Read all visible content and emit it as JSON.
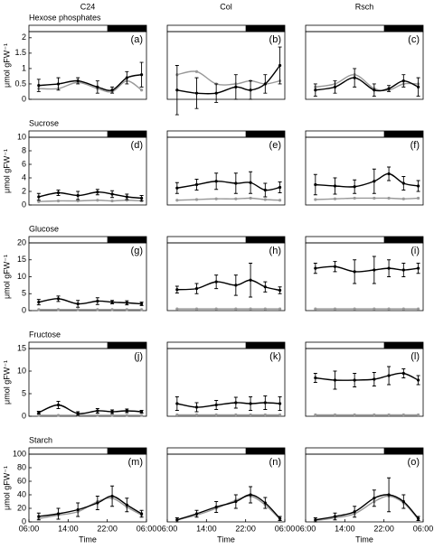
{
  "chart_data": [
    {
      "type": "line",
      "title": "C24",
      "row_title": "Hexose phosphates",
      "ylabel": "μmol gFW⁻¹",
      "panel_label": "(a)",
      "x": [
        2,
        6,
        10,
        14,
        17,
        20,
        23
      ],
      "xlim": [
        0,
        24
      ],
      "ylim": [
        0,
        2.2
      ],
      "yticks": [
        0,
        0.5,
        1,
        1.5,
        2
      ],
      "dark_period": [
        16,
        24
      ],
      "series": [
        {
          "color": "#000000",
          "values": [
            0.45,
            0.5,
            0.6,
            0.4,
            0.3,
            0.7,
            0.8
          ],
          "errors": [
            0.2,
            0.2,
            0.1,
            0.2,
            0.1,
            0.2,
            0.4
          ]
        },
        {
          "color": "#999999",
          "values": [
            0.35,
            0.35,
            0.55,
            0.35,
            0.25,
            0.6,
            0.3
          ]
        }
      ]
    },
    {
      "type": "line",
      "title": "Col",
      "panel_label": "(b)",
      "x": [
        2,
        6,
        10,
        14,
        17,
        20,
        23
      ],
      "xlim": [
        0,
        24
      ],
      "ylim": [
        0,
        2.2
      ],
      "dark_period": [
        16,
        24
      ],
      "series": [
        {
          "color": "#000000",
          "values": [
            0.3,
            0.2,
            0.2,
            0.4,
            0.3,
            0.5,
            1.1
          ],
          "errors": [
            0.8,
            0.5,
            0.3,
            0.4,
            0.3,
            0.3,
            0.6
          ]
        },
        {
          "color": "#999999",
          "values": [
            0.8,
            0.9,
            0.5,
            0.5,
            0.6,
            0.5,
            0.6
          ]
        }
      ]
    },
    {
      "type": "line",
      "title": "Rsch",
      "panel_label": "(c)",
      "x": [
        2,
        6,
        10,
        14,
        17,
        20,
        23
      ],
      "xlim": [
        0,
        24
      ],
      "ylim": [
        0,
        2.2
      ],
      "dark_period": [
        16,
        24
      ],
      "series": [
        {
          "color": "#000000",
          "values": [
            0.3,
            0.4,
            0.7,
            0.3,
            0.35,
            0.6,
            0.4
          ],
          "errors": [
            0.2,
            0.2,
            0.3,
            0.2,
            0.1,
            0.2,
            0.3
          ]
        },
        {
          "color": "#999999",
          "values": [
            0.4,
            0.5,
            0.8,
            0.35,
            0.3,
            0.5,
            0.5
          ]
        }
      ]
    },
    {
      "type": "line",
      "row_title": "Sucrose",
      "ylabel": "μmol gFW⁻¹",
      "panel_label": "(d)",
      "x": [
        2,
        6,
        10,
        14,
        17,
        20,
        23
      ],
      "xlim": [
        0,
        24
      ],
      "ylim": [
        0,
        10
      ],
      "yticks": [
        0,
        2,
        4,
        6,
        8,
        10
      ],
      "dark_period": [
        16,
        24
      ],
      "series": [
        {
          "color": "#000000",
          "values": [
            1.2,
            1.8,
            1.4,
            1.9,
            1.6,
            1.2,
            1.0
          ],
          "errors": [
            0.5,
            0.4,
            0.6,
            0.4,
            0.5,
            0.4,
            0.4
          ]
        },
        {
          "color": "#999999",
          "values": [
            0.5,
            0.6,
            0.6,
            0.7,
            0.6,
            0.7,
            0.6
          ]
        }
      ]
    },
    {
      "type": "line",
      "panel_label": "(e)",
      "x": [
        2,
        6,
        10,
        14,
        17,
        20,
        23
      ],
      "xlim": [
        0,
        24
      ],
      "ylim": [
        0,
        10
      ],
      "dark_period": [
        16,
        24
      ],
      "series": [
        {
          "color": "#000000",
          "values": [
            2.5,
            3.0,
            3.5,
            3.2,
            3.3,
            2.2,
            2.6
          ],
          "errors": [
            0.8,
            0.8,
            1.2,
            1.5,
            1.6,
            1.0,
            0.8
          ]
        },
        {
          "color": "#999999",
          "values": [
            0.7,
            0.8,
            0.9,
            0.9,
            1.0,
            0.8,
            0.7
          ]
        }
      ]
    },
    {
      "type": "line",
      "panel_label": "(f)",
      "x": [
        2,
        6,
        10,
        14,
        17,
        20,
        23
      ],
      "xlim": [
        0,
        24
      ],
      "ylim": [
        0,
        10
      ],
      "dark_period": [
        16,
        24
      ],
      "series": [
        {
          "color": "#000000",
          "values": [
            3.0,
            2.8,
            2.7,
            3.5,
            4.6,
            3.2,
            2.8
          ],
          "errors": [
            1.5,
            1.2,
            1.0,
            1.8,
            1.0,
            1.0,
            0.8
          ]
        },
        {
          "color": "#999999",
          "values": [
            0.8,
            0.9,
            1.0,
            1.0,
            1.0,
            0.9,
            1.0
          ]
        }
      ]
    },
    {
      "type": "line",
      "row_title": "Glucose",
      "ylabel": "μmol gFW⁻¹",
      "panel_label": "(g)",
      "x": [
        2,
        6,
        10,
        14,
        17,
        20,
        23
      ],
      "xlim": [
        0,
        24
      ],
      "ylim": [
        0,
        20
      ],
      "yticks": [
        0,
        5,
        10,
        15,
        20
      ],
      "dark_period": [
        16,
        24
      ],
      "series": [
        {
          "color": "#000000",
          "values": [
            2.5,
            3.5,
            2.0,
            2.8,
            2.5,
            2.3,
            2.0
          ],
          "errors": [
            0.8,
            0.8,
            1.0,
            1.0,
            0.5,
            0.6,
            0.5
          ]
        },
        {
          "color": "#999999",
          "values": [
            0.3,
            0.3,
            0.3,
            0.3,
            0.3,
            0.3,
            0.3
          ]
        }
      ]
    },
    {
      "type": "line",
      "panel_label": "(h)",
      "x": [
        2,
        6,
        10,
        14,
        17,
        20,
        23
      ],
      "xlim": [
        0,
        24
      ],
      "ylim": [
        0,
        20
      ],
      "dark_period": [
        16,
        24
      ],
      "series": [
        {
          "color": "#000000",
          "values": [
            6.2,
            6.5,
            8.5,
            7.5,
            9.0,
            7.0,
            6.0
          ],
          "errors": [
            1.0,
            1.5,
            2.0,
            3.0,
            5.0,
            1.5,
            1.0
          ]
        },
        {
          "color": "#999999",
          "values": [
            0.5,
            0.5,
            0.5,
            0.5,
            0.5,
            0.5,
            0.5
          ]
        }
      ]
    },
    {
      "type": "line",
      "panel_label": "(i)",
      "x": [
        2,
        6,
        10,
        14,
        17,
        20,
        23
      ],
      "xlim": [
        0,
        24
      ],
      "ylim": [
        0,
        20
      ],
      "dark_period": [
        16,
        24
      ],
      "series": [
        {
          "color": "#000000",
          "values": [
            12.5,
            13.0,
            11.5,
            12.0,
            12.5,
            12.0,
            12.5
          ],
          "errors": [
            1.5,
            1.5,
            3.5,
            4.0,
            2.5,
            2.0,
            1.5
          ]
        },
        {
          "color": "#999999",
          "values": [
            0.5,
            0.5,
            0.5,
            0.5,
            0.5,
            0.5,
            0.5
          ]
        }
      ]
    },
    {
      "type": "line",
      "row_title": "Fructose",
      "ylabel": "μmol gFW⁻¹",
      "panel_label": "(j)",
      "x": [
        2,
        6,
        10,
        14,
        17,
        20,
        23
      ],
      "xlim": [
        0,
        24
      ],
      "ylim": [
        0,
        15
      ],
      "yticks": [
        0,
        5,
        10,
        15
      ],
      "dark_period": [
        16,
        24
      ],
      "series": [
        {
          "color": "#000000",
          "values": [
            0.8,
            2.5,
            0.6,
            1.2,
            1.0,
            1.2,
            1.0
          ],
          "errors": [
            0.3,
            0.8,
            0.4,
            0.5,
            0.4,
            0.4,
            0.3
          ]
        },
        {
          "color": "#999999",
          "values": [
            0.2,
            0.2,
            0.2,
            0.2,
            0.2,
            0.2,
            0.2
          ]
        }
      ]
    },
    {
      "type": "line",
      "panel_label": "(k)",
      "x": [
        2,
        6,
        10,
        14,
        17,
        20,
        23
      ],
      "xlim": [
        0,
        24
      ],
      "ylim": [
        0,
        15
      ],
      "dark_period": [
        16,
        24
      ],
      "series": [
        {
          "color": "#000000",
          "values": [
            2.8,
            2.0,
            2.5,
            3.0,
            2.8,
            3.0,
            2.8
          ],
          "errors": [
            1.5,
            1.0,
            1.0,
            1.2,
            1.5,
            1.5,
            1.5
          ]
        },
        {
          "color": "#999999",
          "values": [
            0.3,
            0.3,
            0.3,
            0.3,
            0.3,
            0.3,
            0.3
          ]
        }
      ]
    },
    {
      "type": "line",
      "panel_label": "(l)",
      "x": [
        2,
        6,
        10,
        14,
        17,
        20,
        23
      ],
      "xlim": [
        0,
        24
      ],
      "ylim": [
        0,
        15
      ],
      "dark_period": [
        16,
        24
      ],
      "series": [
        {
          "color": "#000000",
          "values": [
            8.5,
            8.0,
            8.0,
            8.2,
            9.0,
            9.5,
            8.0
          ],
          "errors": [
            1.0,
            2.0,
            1.5,
            1.5,
            2.0,
            1.0,
            1.0
          ]
        },
        {
          "color": "#999999",
          "values": [
            0.3,
            0.3,
            0.3,
            0.3,
            0.3,
            0.3,
            0.3
          ]
        }
      ]
    },
    {
      "type": "line",
      "row_title": "Starch",
      "ylabel": "μmol gFW⁻¹",
      "xlabel": "Time",
      "panel_label": "(m)",
      "x": [
        2,
        6,
        10,
        14,
        17,
        20,
        23
      ],
      "xlim": [
        0,
        24
      ],
      "xticks": [
        {
          "value": 0,
          "label": "06:00"
        },
        {
          "value": 8,
          "label": "14:00"
        },
        {
          "value": 16,
          "label": "22:00"
        },
        {
          "value": 24,
          "label": "06:00"
        }
      ],
      "ylim": [
        0,
        100
      ],
      "yticks": [
        0,
        20,
        40,
        60,
        80,
        100
      ],
      "dark_period": [
        16,
        24
      ],
      "series": [
        {
          "color": "#000000",
          "values": [
            8,
            12,
            18,
            28,
            38,
            25,
            12
          ],
          "errors": [
            5,
            8,
            10,
            10,
            15,
            10,
            5
          ]
        },
        {
          "color": "#999999",
          "values": [
            5,
            10,
            15,
            30,
            35,
            22,
            10
          ]
        }
      ]
    },
    {
      "type": "line",
      "xlabel": "Time",
      "panel_label": "(n)",
      "x": [
        2,
        6,
        10,
        14,
        17,
        20,
        23
      ],
      "xlim": [
        0,
        24
      ],
      "xticks": [
        {
          "value": 0,
          "label": "06:00"
        },
        {
          "value": 8,
          "label": "14:00"
        },
        {
          "value": 16,
          "label": "22:00"
        },
        {
          "value": 24,
          "label": "06:00"
        }
      ],
      "ylim": [
        0,
        100
      ],
      "dark_period": [
        16,
        24
      ],
      "series": [
        {
          "color": "#000000",
          "values": [
            3,
            12,
            22,
            30,
            40,
            28,
            5
          ],
          "errors": [
            3,
            5,
            8,
            10,
            12,
            8,
            3
          ]
        },
        {
          "color": "#999999",
          "values": [
            3,
            10,
            20,
            32,
            38,
            25,
            4
          ]
        }
      ]
    },
    {
      "type": "line",
      "xlabel": "Time",
      "panel_label": "(o)",
      "x": [
        2,
        6,
        10,
        14,
        17,
        20,
        23
      ],
      "xlim": [
        0,
        24
      ],
      "xticks": [
        {
          "value": 0,
          "label": "06:00"
        },
        {
          "value": 8,
          "label": "14:00"
        },
        {
          "value": 16,
          "label": "22:00"
        },
        {
          "value": 24,
          "label": "06:00"
        }
      ],
      "ylim": [
        0,
        100
      ],
      "dark_period": [
        16,
        24
      ],
      "series": [
        {
          "color": "#000000",
          "values": [
            3,
            8,
            15,
            35,
            40,
            30,
            5
          ],
          "errors": [
            3,
            5,
            8,
            12,
            25,
            10,
            3
          ]
        },
        {
          "color": "#999999",
          "values": [
            2,
            6,
            12,
            30,
            38,
            28,
            4
          ]
        }
      ]
    }
  ]
}
